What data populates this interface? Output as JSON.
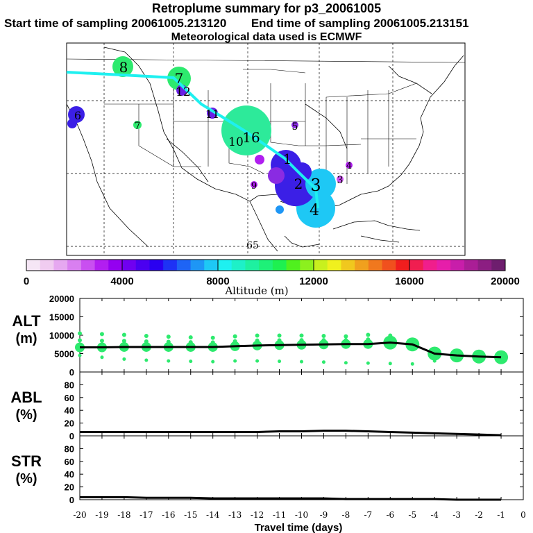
{
  "header": {
    "title": "Retroplume summary for p3_20061005",
    "start_label": "Start time of sampling 20061005.213120",
    "end_label": "End time of sampling 20061005.213151",
    "met_label": "Meteorological data used is ECMWF"
  },
  "colorbar": {
    "title": "Altitude (m)",
    "ticks": [
      "0",
      "4000",
      "8000",
      "12000",
      "16000",
      "20000"
    ],
    "colors": [
      "#f5e6f5",
      "#f0ccf0",
      "#e6a8f0",
      "#d97ff0",
      "#c94ff0",
      "#b21ef0",
      "#9400f0",
      "#7000f0",
      "#4b00f0",
      "#2a00f0",
      "#1e32f5",
      "#1e64f5",
      "#1e96f5",
      "#1ec8f5",
      "#1ef0f0",
      "#1ef0c8",
      "#1ef0a0",
      "#1ef078",
      "#1ef050",
      "#50f01e",
      "#8cf01e",
      "#c8f01e",
      "#f0f01e",
      "#f0c81e",
      "#f0a01e",
      "#f0781e",
      "#f0501e",
      "#f01e1e",
      "#f01e50",
      "#f01e8c",
      "#e61eaa",
      "#c81eaa",
      "#aa1e96",
      "#8c1e82",
      "#6e1e6e"
    ]
  },
  "map_labels": [
    {
      "text": "8",
      "color": "#2dea6e"
    },
    {
      "text": "7",
      "color": "#2dea6e"
    },
    {
      "text": "12",
      "color": "#6a1fe6"
    },
    {
      "text": "11",
      "color": "#6a1fe6"
    },
    {
      "text": "16",
      "color": "#2dea9a"
    },
    {
      "text": "10",
      "color": "#2dea9a"
    },
    {
      "text": "5",
      "color": "#8a2be2"
    },
    {
      "text": "1",
      "color": "#3b1fe6"
    },
    {
      "text": "3",
      "color": "#1ec8f5"
    },
    {
      "text": "2",
      "color": "#3b1fe6"
    },
    {
      "text": "4",
      "color": "#1e96f5"
    },
    {
      "text": "6",
      "color": "#3b1fe6"
    },
    {
      "text": "9",
      "color": "#b01ef0"
    },
    {
      "text": "4",
      "color": "#b01ef0"
    },
    {
      "text": "3",
      "color": "#c94ff0"
    },
    {
      "text": "7",
      "color": "#2dea6e"
    },
    {
      "text": "65",
      "color": "#3b1fe6"
    }
  ],
  "chart_data": {
    "type": "line",
    "x": [
      -20,
      -19,
      -18,
      -17,
      -16,
      -15,
      -14,
      -13,
      -12,
      -11,
      -10,
      -9,
      -8,
      -7,
      -6,
      -5,
      -4,
      -3,
      -2,
      -1
    ],
    "xlabel": "Travel time (days)",
    "xticks": [
      "-20",
      "-19",
      "-18",
      "-17",
      "-16",
      "-15",
      "-14",
      "-13",
      "-12",
      "-11",
      "-10",
      "-9",
      "-8",
      "-7",
      "-6",
      "-5",
      "-4",
      "-3",
      "-2",
      "-1",
      "0"
    ],
    "panels": [
      {
        "name": "ALT",
        "unit": "(m)",
        "ylim": [
          0,
          20000
        ],
        "yticks": [
          "20000",
          "15000",
          "10000",
          "5000",
          "0"
        ],
        "mean": [
          6700,
          6700,
          6800,
          6800,
          6800,
          6800,
          6800,
          7000,
          7200,
          7300,
          7400,
          7500,
          7600,
          7600,
          8000,
          7500,
          5000,
          4500,
          4200,
          4000
        ],
        "spread_high": [
          10500,
          10300,
          10100,
          9800,
          9600,
          9400,
          9300,
          9700,
          9900,
          9900,
          9900,
          9800,
          9700,
          10100,
          9900,
          8000,
          5600,
          5200,
          4800,
          4300
        ],
        "spread_low": [
          4500,
          4000,
          3500,
          3200,
          3000,
          2900,
          2800,
          3000,
          3000,
          2900,
          2800,
          2700,
          2500,
          2400,
          2300,
          2200,
          3000,
          3500,
          3800,
          3900
        ]
      },
      {
        "name": "ABL",
        "unit": "(%)",
        "ylim": [
          0,
          100
        ],
        "yticks": [
          "80",
          "60",
          "40",
          "20",
          "0"
        ],
        "mean": [
          6,
          6,
          6,
          6,
          6,
          6,
          6,
          6,
          6,
          7,
          7,
          8,
          8,
          7,
          6,
          5,
          4,
          3,
          2,
          1
        ]
      },
      {
        "name": "STR",
        "unit": "(%)",
        "ylim": [
          0,
          100
        ],
        "yticks": [
          "80",
          "60",
          "40",
          "20",
          "0"
        ],
        "mean": [
          4,
          4,
          4,
          3,
          3,
          3,
          2,
          2,
          2,
          2,
          2,
          2,
          1,
          1,
          1,
          1,
          1,
          0,
          0,
          0
        ]
      }
    ]
  }
}
